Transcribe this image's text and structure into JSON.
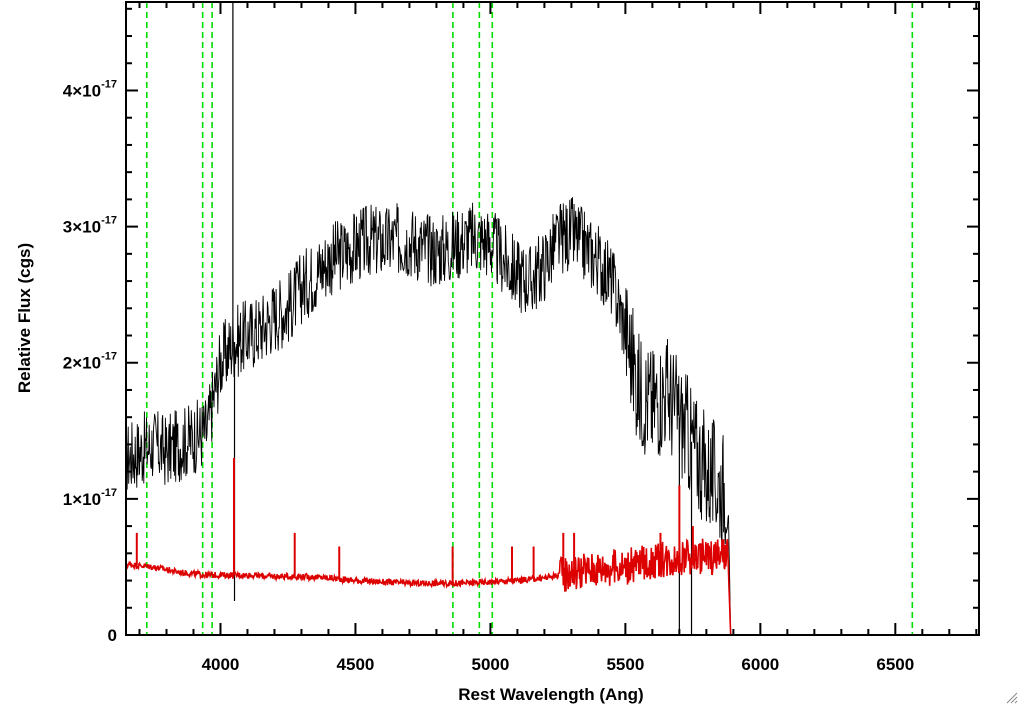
{
  "chart_data": {
    "type": "line",
    "title": "",
    "xlabel": "Rest Wavelength (Ang)",
    "ylabel": "Relative Flux (cgs)",
    "xlim": [
      3650,
      6810
    ],
    "ylim": [
      0,
      4.65e-17
    ],
    "x_ticks": [
      4000,
      4500,
      5000,
      5500,
      6000,
      6500
    ],
    "x_tick_labels": [
      "4000",
      "4500",
      "5000",
      "5500",
      "6000",
      "6500"
    ],
    "y_ticks": [
      0,
      1e-17,
      2e-17,
      3e-17,
      4e-17
    ],
    "y_tick_labels": [
      {
        "mantissa": "0",
        "exp": ""
      },
      {
        "mantissa": "1×10",
        "exp": "-17"
      },
      {
        "mantissa": "2×10",
        "exp": "-17"
      },
      {
        "mantissa": "3×10",
        "exp": "-17"
      },
      {
        "mantissa": "4×10",
        "exp": "-17"
      }
    ],
    "grid": false,
    "vertical_markers": {
      "color": "#00dd00",
      "style": "dashed",
      "x": [
        3727,
        3934,
        3969,
        4861,
        4959,
        5007,
        6563
      ]
    },
    "series": [
      {
        "color": "#000000",
        "x": [
          3650,
          3700,
          3750,
          3800,
          3850,
          3900,
          3950,
          4000,
          4050,
          4100,
          4150,
          4200,
          4250,
          4300,
          4350,
          4400,
          4450,
          4500,
          4550,
          4600,
          4650,
          4700,
          4750,
          4800,
          4850,
          4900,
          4950,
          5000,
          5050,
          5100,
          5150,
          5200,
          5250,
          5300,
          5350,
          5400,
          5450,
          5500,
          5550,
          5600,
          5650,
          5700,
          5750,
          5800,
          5850,
          5880,
          5890,
          6000,
          6500,
          6810
        ],
        "y": [
          1.3e-17,
          1.35e-17,
          1.4e-17,
          1.35e-17,
          1.4e-17,
          1.45e-17,
          1.5e-17,
          2e-17,
          2.15e-17,
          2.2e-17,
          2.25e-17,
          2.35e-17,
          2.4e-17,
          2.55e-17,
          2.65e-17,
          2.75e-17,
          2.8e-17,
          2.85e-17,
          2.9e-17,
          2.88e-17,
          2.9e-17,
          2.9e-17,
          2.85e-17,
          2.82e-17,
          2.85e-17,
          2.9e-17,
          2.92e-17,
          2.88e-17,
          2.75e-17,
          2.65e-17,
          2.6e-17,
          2.72e-17,
          2.9e-17,
          2.95e-17,
          2.85e-17,
          2.75e-17,
          2.6e-17,
          2.25e-17,
          1.8e-17,
          1.7e-17,
          1.8e-17,
          1.6e-17,
          1.4e-17,
          1.2e-17,
          1.1e-17,
          1.1e-17,
          0,
          0,
          0,
          0
        ],
        "spikes": [
          {
            "x": 4046,
            "y": 4.65e-17
          },
          {
            "x": 4052,
            "y": 2.5e-18
          },
          {
            "x": 5700,
            "y": 0
          },
          {
            "x": 5745,
            "y": 0
          }
        ]
      },
      {
        "color": "#dd0000",
        "x": [
          3650,
          3700,
          3750,
          3800,
          3850,
          3900,
          3950,
          4000,
          4100,
          4200,
          4300,
          4400,
          4500,
          4600,
          4700,
          4800,
          4900,
          5000,
          5100,
          5200,
          5300,
          5400,
          5500,
          5600,
          5700,
          5800,
          5880,
          5890,
          6000,
          6500,
          6810
        ],
        "y": [
          5.2e-18,
          5.1e-18,
          5e-18,
          4.8e-18,
          4.6e-18,
          4.5e-18,
          4.4e-18,
          4.4e-18,
          4.4e-18,
          4.3e-18,
          4.3e-18,
          4.2e-18,
          4e-18,
          3.9e-18,
          3.8e-18,
          3.8e-18,
          3.8e-18,
          3.9e-18,
          4e-18,
          4.2e-18,
          4.6e-18,
          4.9e-18,
          5e-18,
          5.4e-18,
          5.7e-18,
          5.8e-18,
          5.8e-18,
          0,
          0,
          0,
          0
        ],
        "spikes": [
          {
            "x": 3690,
            "y": 7.5e-18
          },
          {
            "x": 4050,
            "y": 1.3e-17
          },
          {
            "x": 4275,
            "y": 7.5e-18
          },
          {
            "x": 4440,
            "y": 6.5e-18
          },
          {
            "x": 4860,
            "y": 6.5e-18
          },
          {
            "x": 5080,
            "y": 6.5e-18
          },
          {
            "x": 5160,
            "y": 6.5e-18
          },
          {
            "x": 5270,
            "y": 7.5e-18
          },
          {
            "x": 5310,
            "y": 7.5e-18
          },
          {
            "x": 5630,
            "y": 7.5e-18
          },
          {
            "x": 5700,
            "y": 1.1e-17
          },
          {
            "x": 5750,
            "y": 8e-18
          }
        ]
      }
    ]
  }
}
